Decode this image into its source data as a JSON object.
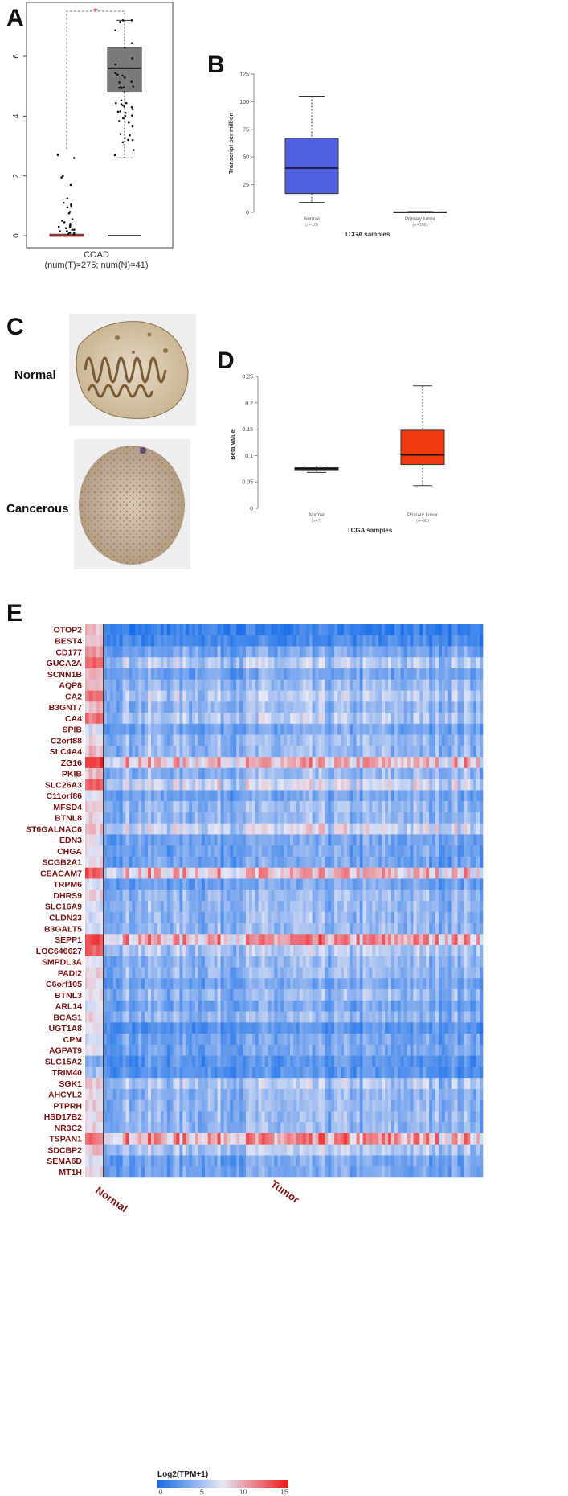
{
  "panels": {
    "a": "A",
    "b": "B",
    "c": "C",
    "d": "D",
    "e": "E"
  },
  "panel_c": {
    "normal_label": "Normal",
    "cancerous_label": "Cancerous"
  },
  "chart_data": [
    {
      "panel": "A",
      "type": "box",
      "xlabel_line1": "COAD",
      "xlabel_line2": "(num(T)=275; num(N)=41)",
      "significance": "*",
      "ylim": [
        -0.4,
        7.8
      ],
      "yticks": [
        0,
        2,
        4,
        6
      ],
      "groups": [
        {
          "name": "",
          "box": {
            "min": 0,
            "q1": 0,
            "median": 0,
            "q3": 0.05,
            "max": 0.1
          },
          "color": "#b22222"
        },
        {
          "name": "",
          "box": {
            "min": 2.6,
            "q1": 4.8,
            "median": 5.6,
            "q3": 6.3,
            "max": 7.2
          },
          "color": "#7a7a7a"
        }
      ],
      "colors": {
        "box_gray": "#7a7a7a",
        "median_red": "#b22222"
      }
    },
    {
      "panel": "B",
      "type": "box",
      "ylabel": "Transcript per million",
      "xlabel": "TCGA samples",
      "ylim": [
        0,
        125
      ],
      "yticks": [
        0,
        25,
        50,
        75,
        100,
        125
      ],
      "groups": [
        {
          "name": "Normal",
          "n": "(n=10)",
          "box": {
            "min": 9,
            "q1": 17,
            "median": 40,
            "q3": 67,
            "max": 105
          },
          "color": "#4f5fe0"
        },
        {
          "name": "Primary tumor",
          "n": "(n=166)",
          "box": {
            "min": 0,
            "q1": 0,
            "median": 0,
            "q3": 0.5,
            "max": 0.8
          },
          "color": "#4f5fe0"
        }
      ]
    },
    {
      "panel": "D",
      "type": "box",
      "ylabel": "Beta value",
      "xlabel": "TCGA samples",
      "ylim": [
        0,
        0.25
      ],
      "yticks": [
        0,
        0.05,
        0.1,
        0.15,
        0.2,
        0.25
      ],
      "ytick_labels": [
        "0",
        "0.05",
        "0.1",
        "0.15",
        "0.2",
        "0.25"
      ],
      "groups": [
        {
          "name": "Normal",
          "n": "(n=7)",
          "box": {
            "min": 0.068,
            "q1": 0.073,
            "median": 0.075,
            "q3": 0.077,
            "max": 0.08
          },
          "color": "#3a4fd6"
        },
        {
          "name": "Primary tumor",
          "n": "(n=98)",
          "box": {
            "min": 0.043,
            "q1": 0.083,
            "median": 0.101,
            "q3": 0.148,
            "max": 0.232
          },
          "color": "#f03a10"
        }
      ]
    },
    {
      "panel": "E",
      "type": "heatmap",
      "genes": [
        "OTOP2",
        "BEST4",
        "CD177",
        "GUCA2A",
        "SCNN1B",
        "AQP8",
        "CA2",
        "B3GNT7",
        "CA4",
        "SPIB",
        "C2orf88",
        "SLC4A4",
        "ZG16",
        "PKIB",
        "SLC26A3",
        "C11orf86",
        "MFSD4",
        "BTNL8",
        "ST6GALNAC6",
        "EDN3",
        "CHGA",
        "SCGB2A1",
        "CEACAM7",
        "TRPM6",
        "DHRS9",
        "SLC16A9",
        "CLDN23",
        "B3GALT5",
        "SEPP1",
        "LOC646627",
        "SMPDL3A",
        "PADI2",
        "C6orf105",
        "BTNL3",
        "ARL14",
        "BCAS1",
        "UGT1A8",
        "CPM",
        "AGPAT9",
        "SLC15A2",
        "TRIM40",
        "SGK1",
        "AHCYL2",
        "PTPRH",
        "HSD17B2",
        "NR3C2",
        "TSPAN1",
        "SDCBP2",
        "SEMA6D",
        "MT1H"
      ],
      "normal_levels": [
        9,
        8,
        10,
        13,
        10,
        10,
        12,
        9,
        12,
        7,
        8,
        9,
        14,
        9,
        12,
        8,
        8,
        8,
        9,
        7,
        8,
        8,
        13,
        7,
        8,
        7,
        7,
        7,
        13,
        12,
        8,
        8,
        8,
        8,
        7,
        8,
        7,
        7,
        7,
        4,
        5,
        9,
        8,
        8,
        8,
        8,
        12,
        9,
        7,
        8
      ],
      "tumor_levels": [
        1,
        1.5,
        3,
        5,
        3,
        4,
        5,
        4,
        5,
        3,
        4,
        4,
        8,
        4,
        6,
        3,
        4,
        4,
        6,
        3,
        3,
        3,
        8,
        3,
        4,
        4,
        4,
        4,
        9,
        5,
        4,
        4,
        3,
        4,
        3,
        4,
        2,
        3,
        3,
        2,
        2,
        5,
        4,
        4,
        4,
        4,
        9,
        5,
        3,
        3
      ],
      "group_labels": {
        "normal": "Normal",
        "tumor": "Tumor"
      },
      "legend_title": "Log2(TPM+1)",
      "legend_ticks": [
        "0",
        "5",
        "10",
        "15"
      ],
      "legend_range": [
        0,
        15
      ],
      "colors": {
        "low": "#1a6fe8",
        "mid": "#e6e6f4",
        "high": "#f01e1e"
      }
    }
  ]
}
